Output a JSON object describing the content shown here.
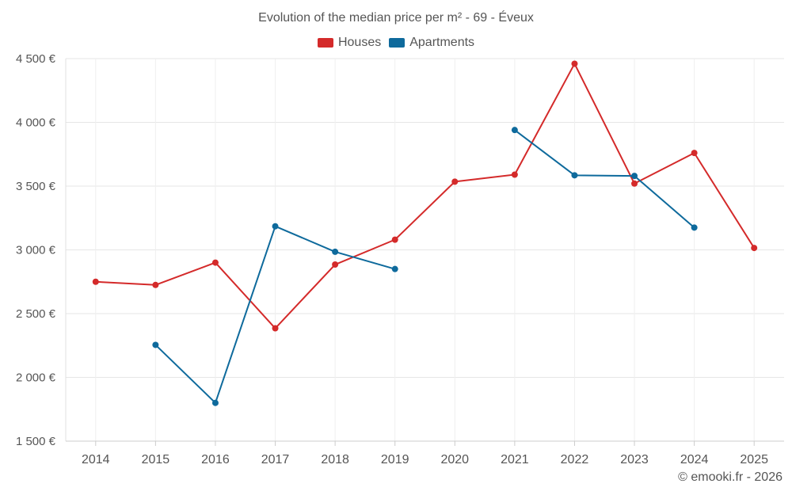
{
  "chart_data": {
    "type": "line",
    "title": "Evolution of the median price per m² - 69 - Éveux",
    "categories": [
      "2014",
      "2015",
      "2016",
      "2017",
      "2018",
      "2019",
      "2020",
      "2021",
      "2022",
      "2023",
      "2024",
      "2025"
    ],
    "series": [
      {
        "name": "Houses",
        "color": "#d42a2a",
        "values": [
          2750,
          2725,
          2900,
          2385,
          2885,
          3080,
          3535,
          3590,
          4460,
          3520,
          3760,
          3015
        ]
      },
      {
        "name": "Apartments",
        "color": "#0e6a9c",
        "values": [
          null,
          2255,
          1800,
          3185,
          2985,
          2850,
          null,
          3940,
          3585,
          3580,
          3175,
          null
        ]
      }
    ],
    "ylim": [
      1500,
      4500
    ],
    "yticks": [
      1500,
      2000,
      2500,
      3000,
      3500,
      4000,
      4500
    ],
    "ytick_labels": [
      "1 500 €",
      "2 000 €",
      "2 500 €",
      "3 000 €",
      "3 500 €",
      "4 000 €",
      "4 500 €"
    ],
    "xlabel": "",
    "ylabel": "",
    "grid": true,
    "legend_position": "top"
  },
  "credit": "© emooki.fr - 2026"
}
